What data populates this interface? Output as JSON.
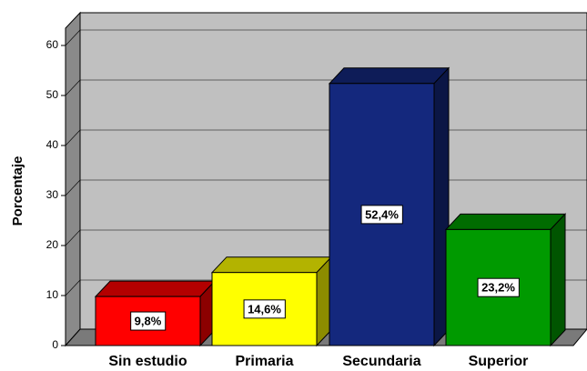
{
  "chart_data": {
    "type": "bar3d",
    "y_label": "Porcentaje",
    "categories": [
      "Sin estudio",
      "Primaria",
      "Secundaria",
      "Superior"
    ],
    "values": [
      9.8,
      14.6,
      52.4,
      23.2
    ],
    "value_labels": [
      "9,8%",
      "14,6%",
      "52,4%",
      "23,2%"
    ],
    "colors": [
      "#ff0000",
      "#ffff00",
      "#14287d",
      "#009a00"
    ],
    "ylim": [
      0,
      64
    ],
    "yticks": [
      0,
      10,
      20,
      30,
      40,
      50,
      60
    ],
    "grid": true
  }
}
